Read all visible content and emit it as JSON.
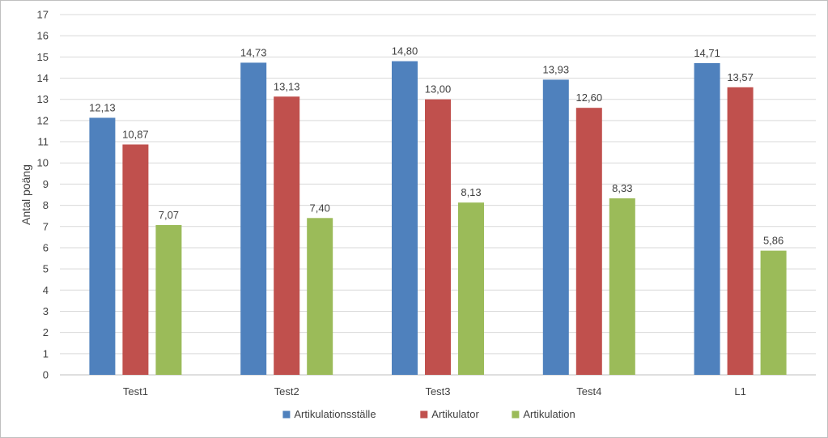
{
  "chart_data": {
    "type": "bar",
    "title": "",
    "xlabel": "",
    "ylabel": "Antal poäng",
    "ylim": [
      0,
      17
    ],
    "yticks": [
      "0",
      "1",
      "2",
      "3",
      "4",
      "5",
      "6",
      "7",
      "8",
      "9",
      "10",
      "11",
      "12",
      "13",
      "14",
      "15",
      "16",
      "17"
    ],
    "grid": true,
    "legend_position": "bottom",
    "categories": [
      "Test1",
      "Test2",
      "Test3",
      "Test4",
      "L1"
    ],
    "series": [
      {
        "name": "Artikulationsställe",
        "color": "#4f81bd",
        "values": [
          12.13,
          14.73,
          14.8,
          13.93,
          14.71
        ],
        "labels": [
          "12,13",
          "14,73",
          "14,80",
          "13,93",
          "14,71"
        ]
      },
      {
        "name": "Artikulator",
        "color": "#c0504d",
        "values": [
          10.87,
          13.13,
          13.0,
          12.6,
          13.57
        ],
        "labels": [
          "10,87",
          "13,13",
          "13,00",
          "12,60",
          "13,57"
        ]
      },
      {
        "name": "Artikulation",
        "color": "#9bbb59",
        "values": [
          7.07,
          7.4,
          8.13,
          8.33,
          5.86
        ],
        "labels": [
          "7,07",
          "7,40",
          "8,13",
          "8,33",
          "5,86"
        ]
      }
    ]
  }
}
